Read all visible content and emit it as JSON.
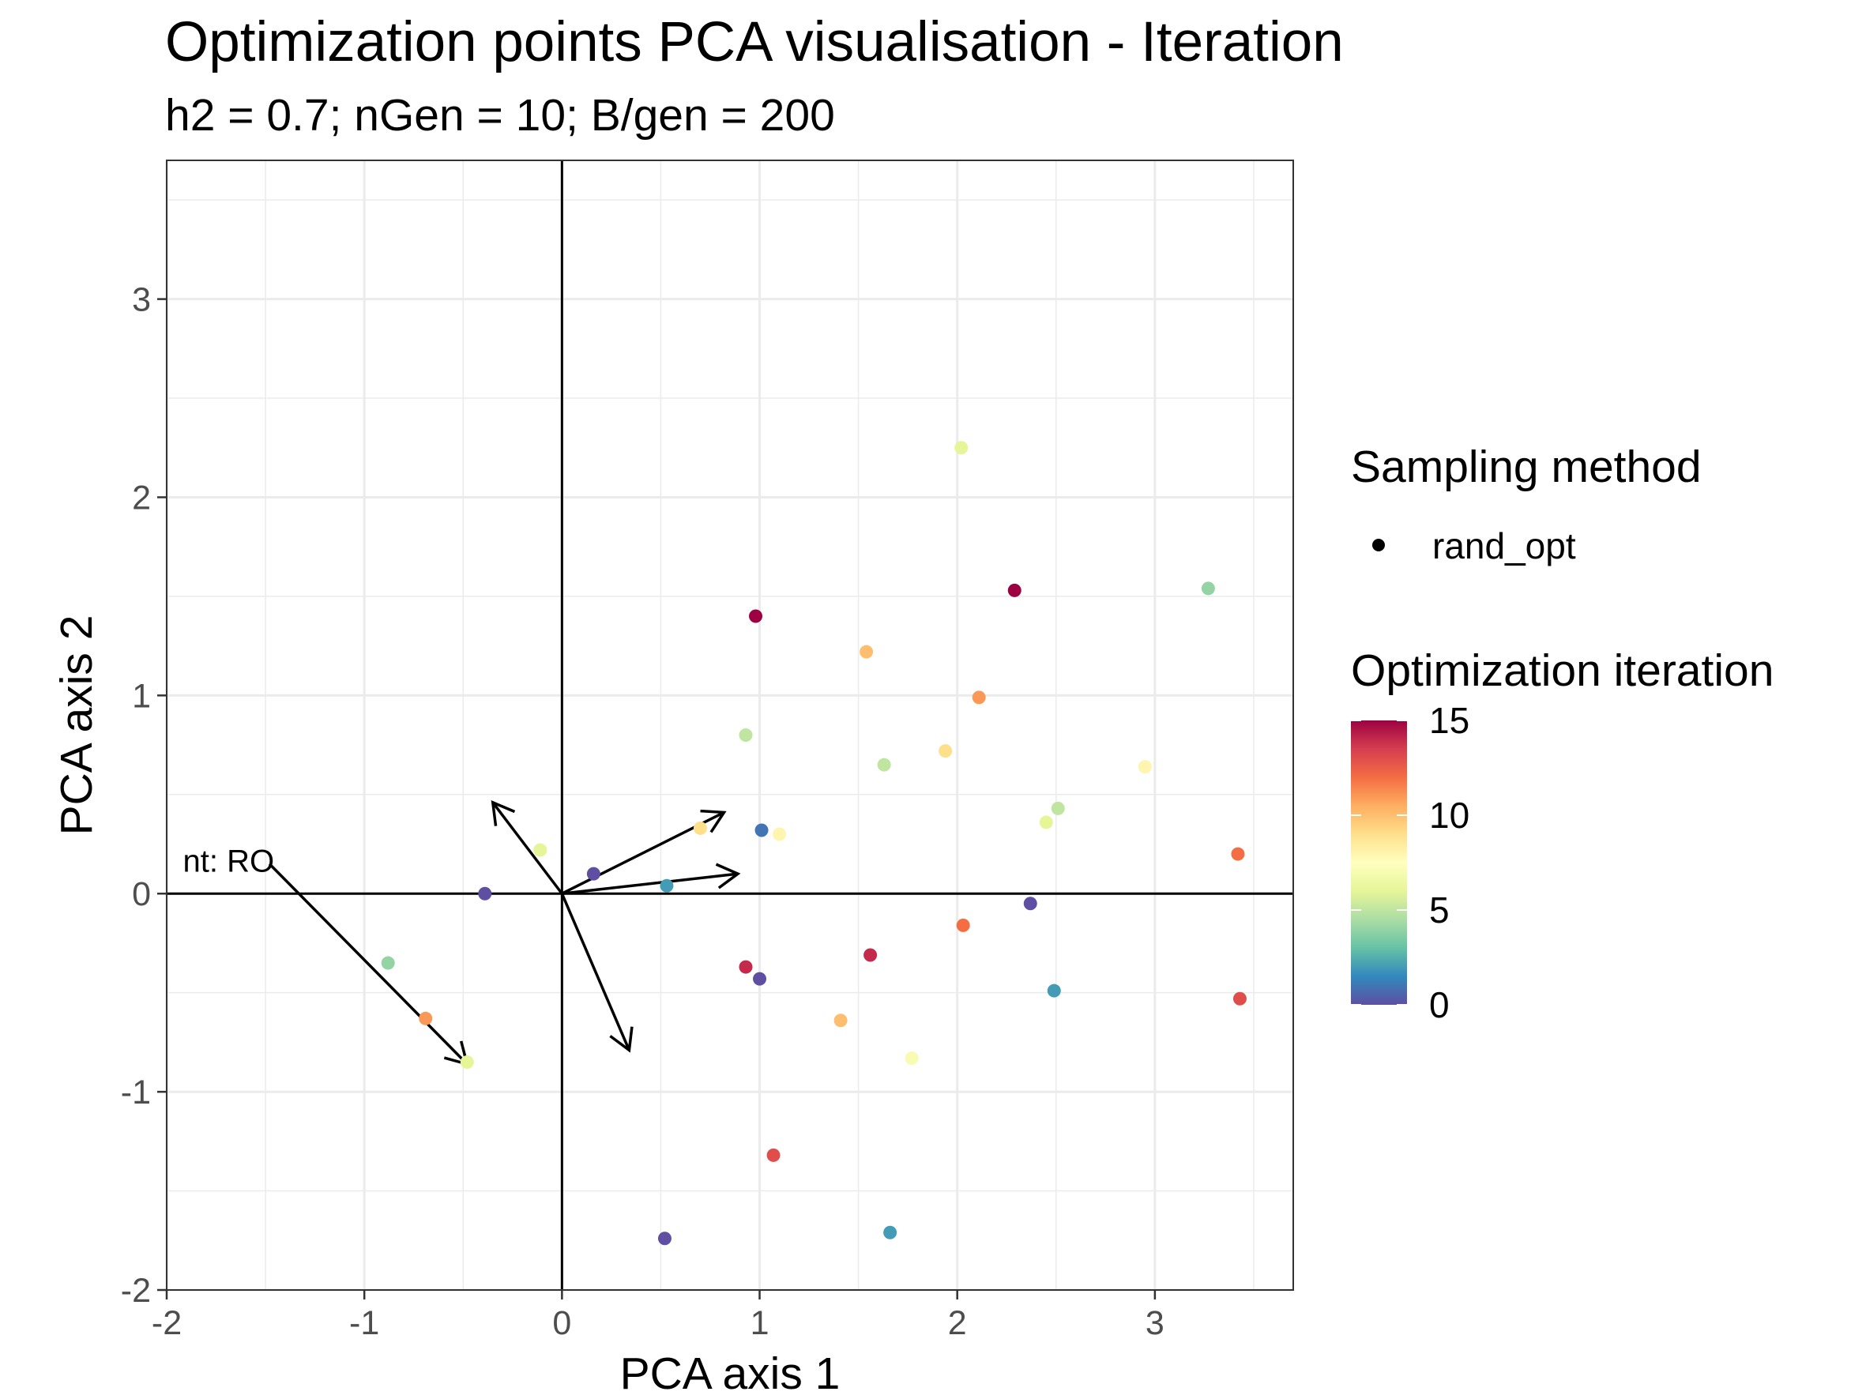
{
  "chart_data": {
    "type": "scatter",
    "title": "Optimization points PCA visualisation - Iteration",
    "subtitle": "h2 = 0.7; nGen = 10; B/gen = 200",
    "xlabel": "PCA axis 1",
    "ylabel": "PCA axis 2",
    "xlim": [
      -2,
      3.7
    ],
    "ylim": [
      -2,
      3.7
    ],
    "x_ticks": [
      -2,
      -1,
      0,
      1,
      2,
      3
    ],
    "y_ticks": [
      -2,
      -1,
      0,
      1,
      2,
      3
    ],
    "x_tick_labels": [
      "-2",
      "-1",
      "0",
      "1",
      "2",
      "3"
    ],
    "y_tick_labels": [
      "-2",
      "-1",
      "0",
      "1",
      "2",
      "3"
    ],
    "grid": true,
    "legend": {
      "position": "right",
      "shape_title": "Sampling method",
      "shape_items": [
        "rand_opt"
      ],
      "color_title": "Optimization iteration",
      "color_range": [
        0,
        15
      ],
      "color_ticks": [
        "0",
        "5",
        "10",
        "15"
      ],
      "palette": [
        "#5E4FA2",
        "#3288BD",
        "#66C2A5",
        "#ABDDA4",
        "#E6F598",
        "#FFFFBF",
        "#FEE08B",
        "#FDAE61",
        "#F46D43",
        "#D53E4F",
        "#9E0142"
      ]
    },
    "series": [
      {
        "name": "rand_opt",
        "points": [
          {
            "x": 0.98,
            "y": 1.4,
            "iter": 15
          },
          {
            "x": 2.29,
            "y": 1.53,
            "iter": 15
          },
          {
            "x": 3.27,
            "y": 1.54,
            "iter": 4
          },
          {
            "x": 2.02,
            "y": 2.25,
            "iter": 6
          },
          {
            "x": 1.54,
            "y": 1.22,
            "iter": 10
          },
          {
            "x": 2.11,
            "y": 0.99,
            "iter": 11
          },
          {
            "x": 0.93,
            "y": 0.8,
            "iter": 5
          },
          {
            "x": 1.63,
            "y": 0.65,
            "iter": 5
          },
          {
            "x": 1.94,
            "y": 0.72,
            "iter": 9
          },
          {
            "x": 2.95,
            "y": 0.64,
            "iter": 8
          },
          {
            "x": 2.51,
            "y": 0.43,
            "iter": 5
          },
          {
            "x": 2.45,
            "y": 0.36,
            "iter": 6
          },
          {
            "x": 0.7,
            "y": 0.33,
            "iter": 9
          },
          {
            "x": 1.01,
            "y": 0.32,
            "iter": 1
          },
          {
            "x": 1.1,
            "y": 0.3,
            "iter": 8
          },
          {
            "x": -0.11,
            "y": 0.22,
            "iter": 6
          },
          {
            "x": 0.16,
            "y": 0.1,
            "iter": 0
          },
          {
            "x": 0.53,
            "y": 0.04,
            "iter": 2
          },
          {
            "x": -0.39,
            "y": 0.0,
            "iter": 0
          },
          {
            "x": 3.42,
            "y": 0.2,
            "iter": 12
          },
          {
            "x": 2.37,
            "y": -0.05,
            "iter": 0
          },
          {
            "x": 2.03,
            "y": -0.16,
            "iter": 12
          },
          {
            "x": 1.56,
            "y": -0.31,
            "iter": 14
          },
          {
            "x": 0.93,
            "y": -0.37,
            "iter": 14
          },
          {
            "x": 1.0,
            "y": -0.43,
            "iter": 0
          },
          {
            "x": 2.49,
            "y": -0.49,
            "iter": 2
          },
          {
            "x": 3.43,
            "y": -0.53,
            "iter": 13
          },
          {
            "x": -0.88,
            "y": -0.35,
            "iter": 4
          },
          {
            "x": -0.69,
            "y": -0.63,
            "iter": 11
          },
          {
            "x": -0.48,
            "y": -0.85,
            "iter": 6
          },
          {
            "x": 1.41,
            "y": -0.64,
            "iter": 10
          },
          {
            "x": 1.77,
            "y": -0.83,
            "iter": 7
          },
          {
            "x": 1.07,
            "y": -1.32,
            "iter": 13
          },
          {
            "x": 1.66,
            "y": -1.71,
            "iter": 2
          },
          {
            "x": 0.52,
            "y": -1.74,
            "iter": 0
          }
        ]
      }
    ],
    "arrows": [
      {
        "x0": 0,
        "y0": 0,
        "x1": -0.35,
        "y1": 0.46
      },
      {
        "x0": 0,
        "y0": 0,
        "x1": 0.82,
        "y1": 0.41
      },
      {
        "x0": 0,
        "y0": 0,
        "x1": 0.89,
        "y1": 0.1
      },
      {
        "x0": 0,
        "y0": 0,
        "x1": 0.34,
        "y1": -0.79
      },
      {
        "x0": -1.48,
        "y0": 0.15,
        "x1": -0.48,
        "y1": -0.86
      }
    ],
    "annotations": [
      {
        "text": "nt: RO",
        "x": -1.48,
        "y": 0.15
      }
    ]
  }
}
